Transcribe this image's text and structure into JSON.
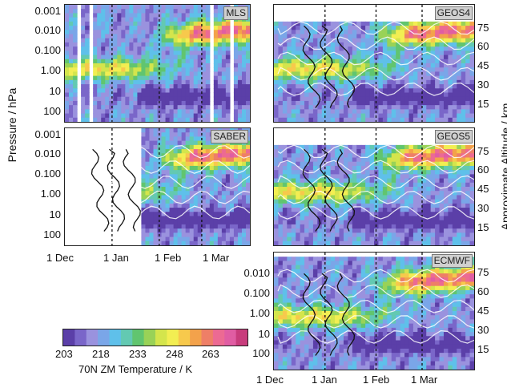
{
  "chart_data": {
    "type": "heatmap",
    "panels": [
      {
        "name": "MLS",
        "data_start": 0.0,
        "data_end": 1.0,
        "gaps": [
          0.08,
          0.14,
          0.8,
          0.9
        ]
      },
      {
        "name": "GEOS4",
        "data_start": 0.0,
        "data_end": 1.0,
        "top_cutoff": 0.0116
      },
      {
        "name": "SABER",
        "data_start": 0.42,
        "data_end": 1.0
      },
      {
        "name": "GEOS5",
        "data_start": 0.0,
        "data_end": 1.0,
        "top_cutoff": 0.0116
      },
      {
        "name": "ECMWF",
        "data_start": 0.0,
        "data_end": 1.0,
        "top_cutoff": 0.0042
      }
    ],
    "y_left": {
      "label": "Pressure / hPa",
      "ticks": [
        "0.001",
        "0.010",
        "0.100",
        "1.00",
        "10",
        "100"
      ],
      "ticks_ecmwf": [
        "0.010",
        "0.100",
        "1.00",
        "10",
        "100"
      ]
    },
    "y_right": {
      "label": "Approximate Altitude / km",
      "ticks": [
        "75",
        "60",
        "45",
        "30",
        "15"
      ]
    },
    "x": {
      "ticks": [
        "1 Dec",
        "1 Jan",
        "1 Feb",
        "1 Mar"
      ],
      "range": [
        "1 Dec",
        "31 Mar"
      ]
    },
    "colorbar": {
      "label": "70N ZM Temperature / K",
      "ticks": [
        "203",
        "218",
        "233",
        "248",
        "263"
      ],
      "range": [
        203,
        278
      ]
    }
  },
  "colors": {
    "scale": [
      "#5b3fa8",
      "#7a66c9",
      "#9a92de",
      "#7aa6e8",
      "#5fc0ea",
      "#63c9b2",
      "#61c56f",
      "#99d257",
      "#d4e54c",
      "#f2ee52",
      "#f7c94c",
      "#f3a24b",
      "#ee7f67",
      "#ec6a93",
      "#e05da3",
      "#c83c7c"
    ]
  }
}
